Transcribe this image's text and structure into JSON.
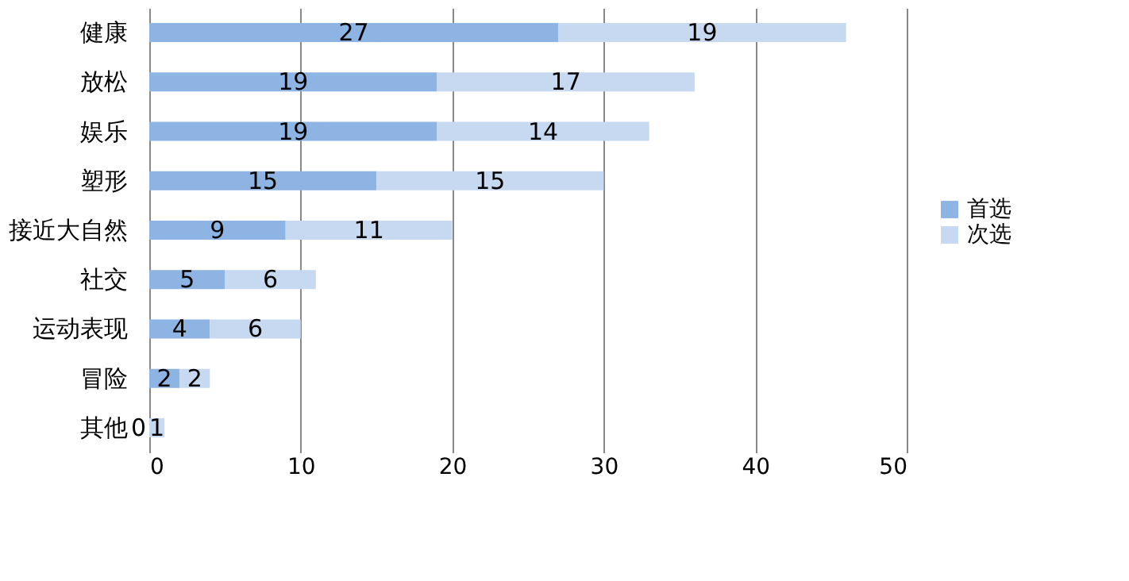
{
  "chart_data": {
    "type": "bar",
    "orientation": "horizontal",
    "stacked": true,
    "categories": [
      "健康",
      "放松",
      "娱乐",
      "塑形",
      "接近大自然",
      "社交",
      "运动表现",
      "冒险",
      "其他"
    ],
    "series": [
      {
        "name": "首选",
        "color": "#8eb4e3",
        "values": [
          27,
          19,
          19,
          15,
          9,
          5,
          4,
          2,
          0
        ]
      },
      {
        "name": "次选",
        "color": "#c6d9f1",
        "values": [
          19,
          17,
          14,
          15,
          11,
          6,
          6,
          2,
          1
        ]
      }
    ],
    "xlim": [
      0,
      50
    ],
    "xticks": [
      0,
      10,
      20,
      30,
      40,
      50
    ],
    "grid": "x",
    "legend": "right",
    "data_labels": true
  }
}
